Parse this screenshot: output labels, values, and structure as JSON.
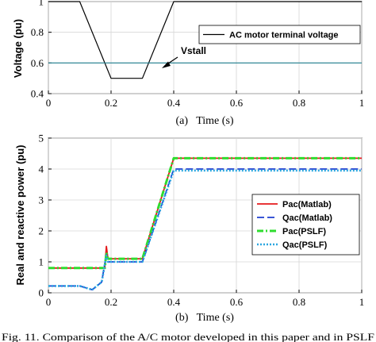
{
  "caption": "Fig. 11. Comparison of the A/C motor developed in this paper and in PSLF",
  "chart_data": [
    {
      "type": "line",
      "panel_label": "(a)   Time (s)",
      "ylabel": "Voltage (pu)",
      "xlim": [
        0,
        1
      ],
      "ylim": [
        0.4,
        1
      ],
      "xticks": [
        0,
        0.2,
        0.4,
        0.6,
        0.8,
        1
      ],
      "yticks": [
        0.4,
        0.6,
        0.8,
        1
      ],
      "grid": true,
      "legend_position": "top-right",
      "series": [
        {
          "name": "AC motor terminal voltage",
          "color": "#000000",
          "x": [
            0,
            0.1,
            0.2,
            0.3,
            0.4,
            1
          ],
          "y": [
            1,
            1,
            0.5,
            0.5,
            1,
            1
          ]
        },
        {
          "color": "#1f7f8f",
          "x": [
            0,
            1
          ],
          "y": [
            0.6,
            0.6
          ]
        }
      ],
      "annotations": [
        {
          "text": "Vstall",
          "x": 0.37,
          "y": 0.6
        }
      ]
    },
    {
      "type": "line",
      "panel_label": "(b)   Time (s)",
      "ylabel": "Real and reactive power (pu)",
      "xlim": [
        0,
        1
      ],
      "ylim": [
        0,
        5
      ],
      "xticks": [
        0,
        0.2,
        0.4,
        0.6,
        0.8,
        1
      ],
      "yticks": [
        0,
        1,
        2,
        3,
        4,
        5
      ],
      "grid": true,
      "legend_position": "center-right",
      "series": [
        {
          "name": "Pac(Matlab)",
          "color": "#e41a1c",
          "dash": "solid",
          "x": [
            0,
            0.18,
            0.185,
            0.19,
            0.2,
            0.3,
            0.4,
            1
          ],
          "y": [
            0.8,
            0.8,
            1.5,
            1.1,
            1.1,
            1.1,
            4.35,
            4.35
          ]
        },
        {
          "name": "Qac(Matlab)",
          "color": "#1f3fd0",
          "dash": "dashed",
          "x": [
            0,
            0.1,
            0.14,
            0.17,
            0.185,
            0.19,
            0.2,
            0.3,
            0.4,
            1
          ],
          "y": [
            0.22,
            0.22,
            0.1,
            0.35,
            1.25,
            1.0,
            1.0,
            1.0,
            4.0,
            4.0
          ]
        },
        {
          "name": "Pac(PSLF)",
          "color": "#2fdc2f",
          "dash": "dashdot",
          "x": [
            0,
            0.18,
            0.185,
            0.19,
            0.2,
            0.3,
            0.4,
            1
          ],
          "y": [
            0.8,
            0.8,
            1.3,
            1.1,
            1.1,
            1.1,
            4.35,
            4.35
          ]
        },
        {
          "name": "Qac(PSLF)",
          "color": "#2aa6e0",
          "dash": "dotted",
          "x": [
            0,
            0.1,
            0.14,
            0.17,
            0.185,
            0.19,
            0.2,
            0.3,
            0.4,
            1
          ],
          "y": [
            0.22,
            0.22,
            0.1,
            0.35,
            1.2,
            1.0,
            1.0,
            1.0,
            3.95,
            3.95
          ]
        }
      ]
    }
  ]
}
